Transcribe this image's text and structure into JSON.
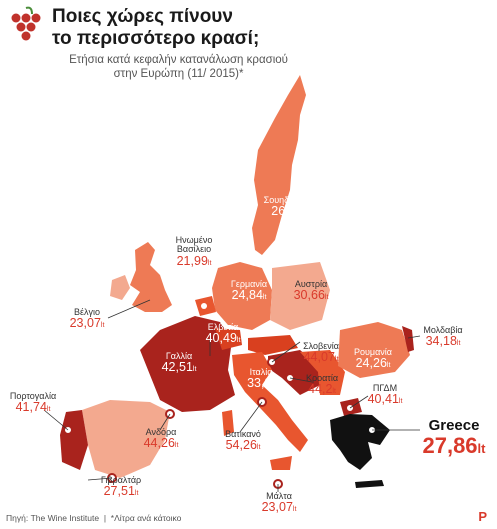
{
  "header": {
    "title_line1": "Ποιες χώρες πίνουν",
    "title_line2": "το περισσότερο κρασί;",
    "subtitle_line1": "Ετήσια κατά κεφαλήν κατανάλωση κρασιού",
    "subtitle_line2": "στην Ευρώπη (11/ 2015)*"
  },
  "unit": "lt",
  "countries": [
    {
      "key": "sweden",
      "name": "Σουηδία",
      "value": "26"
    },
    {
      "key": "uk",
      "name": "Ηνωμένο Βασίλειο",
      "name_line1": "Ηνωμένο",
      "name_line2": "Βασίλειο",
      "value": "21,99"
    },
    {
      "key": "germany",
      "name": "Γερμανία",
      "value": "24,84"
    },
    {
      "key": "austria",
      "name": "Αυστρία",
      "value": "30,66"
    },
    {
      "key": "belgium",
      "name": "Βέλγιο",
      "value": "23,07"
    },
    {
      "key": "switzerland",
      "name": "Ελβετία",
      "value": "40,49"
    },
    {
      "key": "moldova",
      "name": "Μολδαβία",
      "value": "34,18"
    },
    {
      "key": "france",
      "name": "Γαλλία",
      "value": "42,51"
    },
    {
      "key": "slovenia",
      "name": "Σλοβενία",
      "value": "44,07"
    },
    {
      "key": "romania",
      "name": "Ρουμανία",
      "value": "24,26"
    },
    {
      "key": "italy",
      "name": "Ιταλία",
      "value": "33,3"
    },
    {
      "key": "croatia",
      "name": "Κροατία",
      "value": "44,2"
    },
    {
      "key": "portugal",
      "name": "Πορτογαλία",
      "value": "41,74"
    },
    {
      "key": "fyrom",
      "name": "ΠΓΔΜ",
      "value": "40,41"
    },
    {
      "key": "andorra",
      "name": "Ανδόρα",
      "value": "44,26"
    },
    {
      "key": "vatican",
      "name": "Βατικανό",
      "value": "54,26"
    },
    {
      "key": "gibraltar",
      "name": "Γιβραλτάρ",
      "value": "27,51"
    },
    {
      "key": "malta",
      "name": "Μάλτα",
      "value": "23,07"
    },
    {
      "key": "greece",
      "name": "Greece",
      "value": "27,86"
    }
  ],
  "footer": {
    "source": "Πηγή: The Wine Institute",
    "separator": "|",
    "note": "*Λίτρα ανά κάτοικο"
  },
  "brand": "P",
  "colors": {
    "light": "#ee7a55",
    "medium": "#e8562f",
    "strong": "#d9401f",
    "dark": "#a9231d",
    "darkest": "#7a1416",
    "greece": "#111111",
    "label_value": "#d93a2b"
  }
}
